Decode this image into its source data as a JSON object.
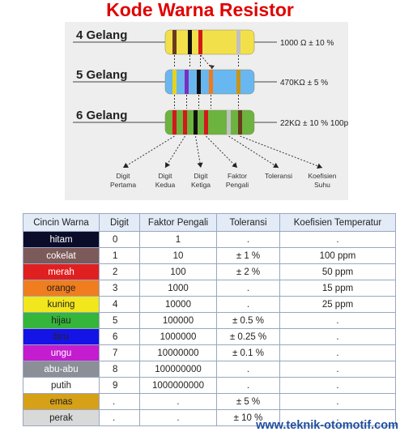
{
  "title": "Kode Warna Resistor",
  "diagram": {
    "resistors": [
      {
        "label": "4 Gelang",
        "value": "1000 Ω ± 10 %",
        "body_color": "#f2e04a",
        "bands": [
          {
            "color": "#6b3a1e",
            "name": "cokelat"
          },
          {
            "color": "#111111",
            "name": "hitam"
          },
          {
            "color": "#d11a1a",
            "name": "merah"
          },
          {
            "color": "#c0c0c0",
            "name": "perak"
          }
        ]
      },
      {
        "label": "5 Gelang",
        "value": "470KΩ ± 5 %",
        "body_color": "#69b7f0",
        "bands": [
          {
            "color": "#e8d21c",
            "name": "kuning"
          },
          {
            "color": "#7a2fbf",
            "name": "ungu"
          },
          {
            "color": "#111111",
            "name": "hitam"
          },
          {
            "color": "#f07a1c",
            "name": "orange"
          },
          {
            "color": "#c8951a",
            "name": "emas"
          }
        ]
      },
      {
        "label": "6 Gelang",
        "value": "22KΩ ± 10 % 100ppm",
        "body_color": "#6db33f",
        "bands": [
          {
            "color": "#d11a1a",
            "name": "merah"
          },
          {
            "color": "#d11a1a",
            "name": "merah"
          },
          {
            "color": "#111111",
            "name": "hitam"
          },
          {
            "color": "#d11a1a",
            "name": "merah"
          },
          {
            "color": "#c0c0c0",
            "name": "perak"
          },
          {
            "color": "#6b3a1e",
            "name": "cokelat"
          }
        ]
      }
    ],
    "captions": [
      [
        "Digit",
        "Pertama"
      ],
      [
        "Digit",
        "Kedua"
      ],
      [
        "Digit",
        "Ketiga"
      ],
      [
        "Faktor",
        "Pengali"
      ],
      [
        "Toleransi"
      ],
      [
        "Koefisien",
        "Suhu"
      ]
    ]
  },
  "table": {
    "headers": [
      "Cincin Warna",
      "Digit",
      "Faktor Pengali",
      "Toleransi",
      "Koefisien Temperatur"
    ],
    "rows": [
      {
        "color": "hitam",
        "swatch": "#0b0b2a",
        "text_color": "#ffffff",
        "digit": "0",
        "factor": "1",
        "tolerance": ".",
        "tempco": "."
      },
      {
        "color": "cokelat",
        "swatch": "#7d5a5a",
        "text_color": "#ffffff",
        "digit": "1",
        "factor": "10",
        "tolerance": "± 1 %",
        "tempco": "100 ppm"
      },
      {
        "color": "merah",
        "swatch": "#e02020",
        "text_color": "#ffffff",
        "digit": "2",
        "factor": "100",
        "tolerance": "± 2 %",
        "tempco": "50 ppm"
      },
      {
        "color": "orange",
        "swatch": "#f07d1e",
        "text_color": "#222222",
        "digit": "3",
        "factor": "1000",
        "tolerance": ".",
        "tempco": "15 ppm"
      },
      {
        "color": "kuning",
        "swatch": "#f2e61c",
        "text_color": "#222222",
        "digit": "4",
        "factor": "10000",
        "tolerance": ".",
        "tempco": "25 ppm"
      },
      {
        "color": "hijau",
        "swatch": "#35b53a",
        "text_color": "#222222",
        "digit": "5",
        "factor": "100000",
        "tolerance": "± 0.5 %",
        "tempco": "."
      },
      {
        "color": "biru",
        "swatch": "#1414e6",
        "text_color": "#222222",
        "digit": "6",
        "factor": "1000000",
        "tolerance": "± 0.25 %",
        "tempco": "."
      },
      {
        "color": "ungu",
        "swatch": "#c41ccf",
        "text_color": "#ffffff",
        "digit": "7",
        "factor": "10000000",
        "tolerance": "± 0.1 %",
        "tempco": "."
      },
      {
        "color": "abu-abu",
        "swatch": "#8a8f98",
        "text_color": "#ffffff",
        "digit": "8",
        "factor": "100000000",
        "tolerance": ".",
        "tempco": "."
      },
      {
        "color": "putih",
        "swatch": "#ffffff",
        "text_color": "#222222",
        "digit": "9",
        "factor": "1000000000",
        "tolerance": ".",
        "tempco": "."
      },
      {
        "color": "emas",
        "swatch": "#d6a017",
        "text_color": "#222222",
        "digit": ".",
        "factor": ".",
        "tolerance": "± 5 %",
        "tempco": "."
      },
      {
        "color": "perak",
        "swatch": "#d9d9d9",
        "text_color": "#222222",
        "digit": ".",
        "factor": ".",
        "tolerance": "± 10 %",
        "tempco": "."
      }
    ]
  },
  "website": "www.teknik-otomotif.com"
}
